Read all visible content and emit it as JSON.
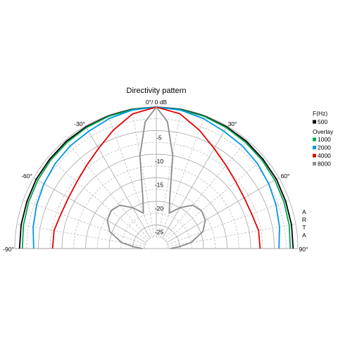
{
  "chart_data": {
    "type": "polar-half",
    "title": "Directivity pattern",
    "top_label": "0°/ 0 dB",
    "r_ticks": [
      "-5",
      "-10",
      "-15",
      "-20",
      "-25"
    ],
    "angle_labels": [
      "-90°",
      "-60°",
      "-30°",
      "30°",
      "60°",
      "90°"
    ],
    "range_db": [
      -30,
      0
    ],
    "angle_range_deg": [
      -90,
      90
    ],
    "grid": true,
    "legend_placement": "right",
    "legend_header": "F(Hz)",
    "overlay_label": "Overlay",
    "side_text": [
      "A",
      "R",
      "T",
      "A"
    ],
    "series": [
      {
        "name": "500",
        "color": "#000000",
        "angles": [
          -90,
          -80,
          -70,
          -60,
          -50,
          -40,
          -30,
          -20,
          -10,
          0,
          10,
          20,
          30,
          40,
          50,
          60,
          70,
          80,
          90
        ],
        "db": [
          -1.0,
          -0.9,
          -0.8,
          -0.6,
          -0.5,
          -0.3,
          -0.2,
          -0.1,
          0,
          0,
          0,
          -0.1,
          -0.2,
          -0.3,
          -0.5,
          -0.6,
          -0.8,
          -0.9,
          -1.0
        ]
      },
      {
        "name": "1000",
        "color": "#00a651",
        "angles": [
          -90,
          -80,
          -70,
          -60,
          -50,
          -40,
          -30,
          -20,
          -10,
          0,
          10,
          20,
          30,
          40,
          50,
          60,
          70,
          80,
          90
        ],
        "db": [
          -1.6,
          -1.4,
          -1.2,
          -1.0,
          -0.8,
          -0.6,
          -0.4,
          -0.2,
          -0.1,
          0,
          -0.1,
          -0.2,
          -0.4,
          -0.6,
          -0.8,
          -1.0,
          -1.2,
          -1.4,
          -1.6
        ]
      },
      {
        "name": "2000",
        "color": "#0096e6",
        "angles": [
          -90,
          -80,
          -70,
          -60,
          -50,
          -40,
          -30,
          -20,
          -10,
          0,
          10,
          20,
          30,
          40,
          50,
          60,
          70,
          80,
          90
        ],
        "db": [
          -4.0,
          -3.5,
          -3.0,
          -2.5,
          -2.0,
          -1.6,
          -1.3,
          -0.7,
          -0.2,
          0,
          -0.2,
          -0.7,
          -1.3,
          -1.6,
          -2.0,
          -2.5,
          -3.0,
          -3.5,
          -4.0
        ]
      },
      {
        "name": "4000",
        "color": "#e60000",
        "angles": [
          -90,
          -80,
          -70,
          -60,
          -50,
          -40,
          -30,
          -20,
          -10,
          0,
          10,
          20,
          30,
          40,
          50,
          60,
          70,
          80,
          90
        ],
        "db": [
          -8.0,
          -8.0,
          -8.5,
          -8.5,
          -8.0,
          -7.0,
          -5.5,
          -3.3,
          -1.0,
          0,
          -1.0,
          -3.3,
          -5.5,
          -7.0,
          -8.0,
          -8.5,
          -8.5,
          -8.0,
          -8.0
        ]
      },
      {
        "name": "8000",
        "color": "#8c8c8c",
        "angles": [
          -90,
          -85,
          -80,
          -70,
          -60,
          -50,
          -40,
          -30,
          -20,
          -15,
          -10,
          -5,
          0,
          5,
          10,
          15,
          20,
          30,
          40,
          50,
          60,
          70,
          80,
          85,
          90
        ],
        "db": [
          -27.0,
          -25.0,
          -22.5,
          -19.5,
          -18.0,
          -17.5,
          -18.0,
          -20.0,
          -22.0,
          -19.0,
          -10.0,
          -3.0,
          0,
          -3.0,
          -10.0,
          -19.0,
          -22.0,
          -20.0,
          -18.0,
          -17.5,
          -18.0,
          -19.5,
          -22.5,
          -25.0,
          -27.0
        ]
      }
    ]
  }
}
